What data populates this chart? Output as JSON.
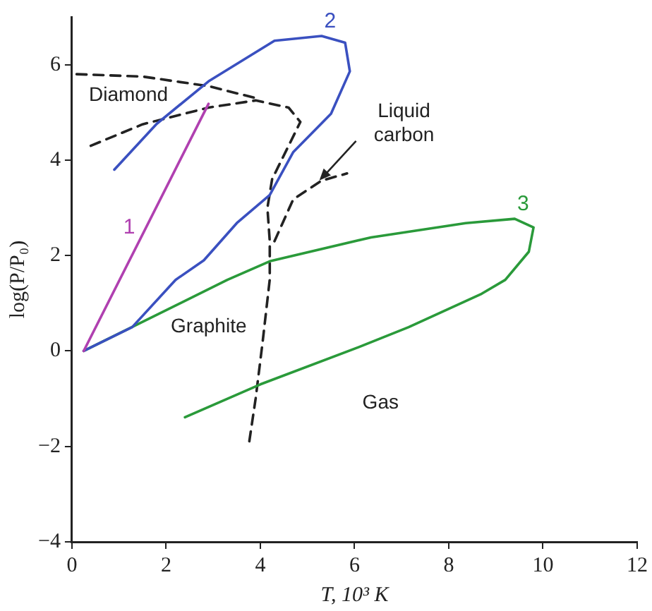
{
  "chart_data": {
    "type": "line",
    "xlabel": "T, 10³ K",
    "ylabel": "log(P/P₀)",
    "xlim": [
      0,
      12
    ],
    "ylim": [
      -4,
      7
    ],
    "xticks": [
      0,
      2,
      4,
      6,
      8,
      10,
      12
    ],
    "yticks": [
      -4,
      -2,
      0,
      2,
      4,
      6
    ],
    "grid": false,
    "legend": false,
    "marker": "none",
    "series": [
      {
        "name": "1",
        "color": "#b040b0",
        "x": [
          0.25,
          2.9
        ],
        "values": [
          0,
          5.18
        ]
      },
      {
        "name": "2",
        "color": "#3a50c0",
        "x": [
          0.25,
          1.28,
          2.2,
          2.8,
          3.5,
          4.2,
          4.7,
          5.5,
          5.9,
          5.8,
          5.3,
          4.3,
          2.9,
          1.8,
          0.9
        ],
        "values": [
          0,
          0.5,
          1.49,
          1.9,
          2.68,
          3.27,
          4.17,
          4.97,
          5.86,
          6.46,
          6.6,
          6.5,
          5.65,
          4.76,
          3.8
        ]
      },
      {
        "name": "3",
        "color": "#2a9a3a",
        "x": [
          0.25,
          3.3,
          4.2,
          6.35,
          8.36,
          9.4,
          9.8,
          9.7,
          9.2,
          8.7,
          7.15,
          6.14,
          4.0,
          2.4
        ],
        "values": [
          0,
          1.49,
          1.88,
          2.38,
          2.68,
          2.77,
          2.59,
          2.08,
          1.49,
          1.2,
          0.5,
          0.1,
          -0.7,
          -1.39
        ]
      },
      {
        "color": "#222222",
        "line_style": "dashed",
        "x": [
          0.1,
          1.5,
          2.9,
          3.9
        ],
        "values": [
          5.8,
          5.75,
          5.55,
          5.3
        ]
      },
      {
        "color": "#222222",
        "line_style": "dashed",
        "x": [
          0.4,
          1.5,
          2.9,
          3.9,
          4.6,
          4.85,
          4.6,
          4.25,
          4.15,
          4.2,
          4.2,
          4.05,
          3.9,
          3.75
        ],
        "values": [
          4.3,
          4.75,
          5.1,
          5.25,
          5.1,
          4.8,
          4.3,
          3.6,
          3.0,
          2.3,
          1.5,
          0.2,
          -1.0,
          -2.0
        ]
      },
      {
        "color": "#222222",
        "line_style": "dashed",
        "x": [
          4.3,
          4.7,
          5.3,
          5.84
        ],
        "values": [
          2.3,
          3.18,
          3.57,
          3.72
        ]
      }
    ],
    "annotations": [
      "Diamond",
      "Liquid carbon",
      "Graphite",
      "Gas"
    ]
  }
}
